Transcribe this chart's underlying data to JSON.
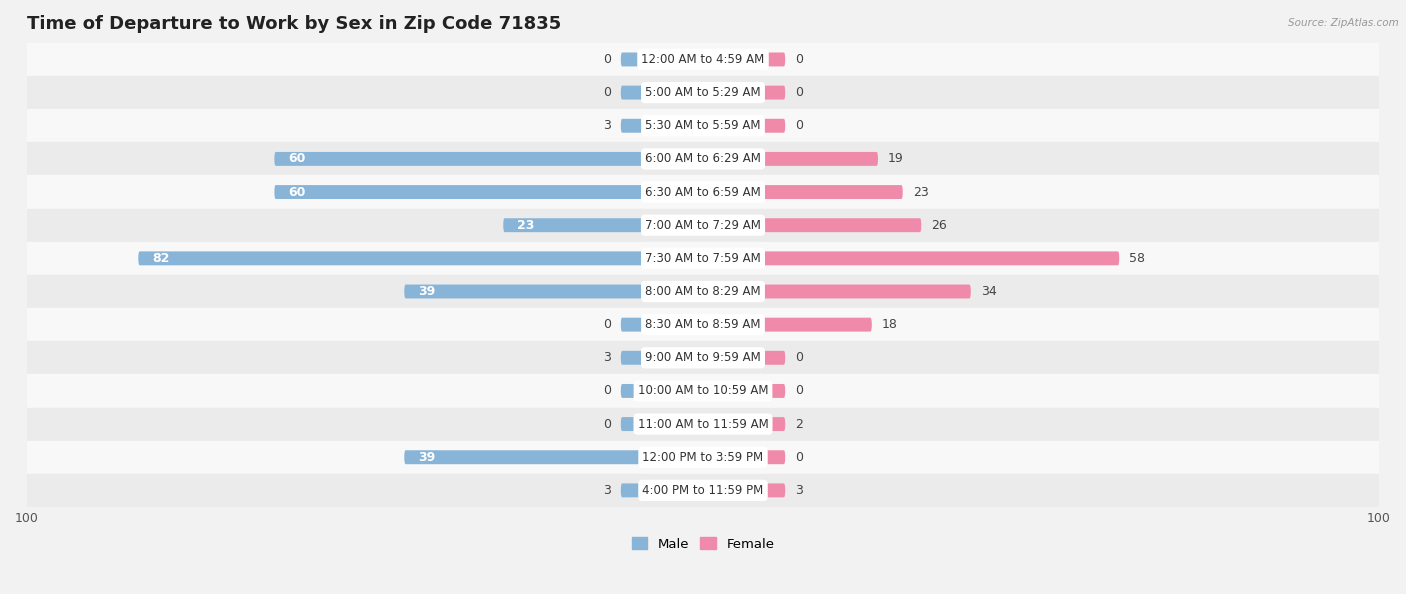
{
  "title": "Time of Departure to Work by Sex in Zip Code 71835",
  "source": "Source: ZipAtlas.com",
  "categories": [
    "12:00 AM to 4:59 AM",
    "5:00 AM to 5:29 AM",
    "5:30 AM to 5:59 AM",
    "6:00 AM to 6:29 AM",
    "6:30 AM to 6:59 AM",
    "7:00 AM to 7:29 AM",
    "7:30 AM to 7:59 AM",
    "8:00 AM to 8:29 AM",
    "8:30 AM to 8:59 AM",
    "9:00 AM to 9:59 AM",
    "10:00 AM to 10:59 AM",
    "11:00 AM to 11:59 AM",
    "12:00 PM to 3:59 PM",
    "4:00 PM to 11:59 PM"
  ],
  "male_values": [
    0,
    0,
    3,
    60,
    60,
    23,
    82,
    39,
    0,
    3,
    0,
    0,
    39,
    3
  ],
  "female_values": [
    0,
    0,
    0,
    19,
    23,
    26,
    58,
    34,
    18,
    0,
    0,
    2,
    0,
    3
  ],
  "male_color": "#88b4d8",
  "female_color": "#f08aaa",
  "max_val": 100,
  "min_bar": 4,
  "bg_color": "#f2f2f2",
  "row_color_light": "#f8f8f8",
  "row_color_dark": "#ebebeb",
  "title_fontsize": 13,
  "label_fontsize": 9,
  "tick_fontsize": 9,
  "bar_height": 0.42
}
